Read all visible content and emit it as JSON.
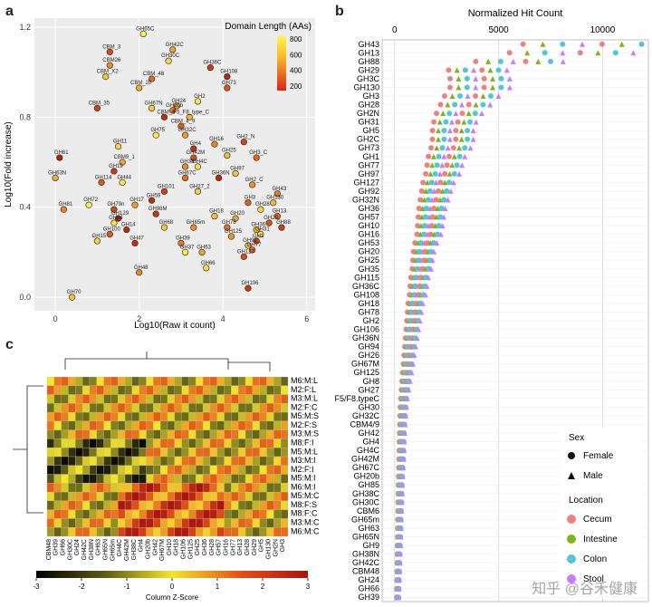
{
  "panel_labels": {
    "a": "a",
    "b": "b",
    "c": "c"
  },
  "watermark": "知乎 @谷禾健康",
  "chart_data": [
    {
      "type": "scatter",
      "panel": "a",
      "xlabel": "Log10(Raw it count)",
      "ylabel": "Log10(Fold increase)",
      "xlim": [
        -0.5,
        6.2
      ],
      "ylim": [
        -0.06,
        1.24
      ],
      "xticks": [
        0,
        2,
        4,
        6
      ],
      "yticks": [
        0.0,
        0.4,
        0.8,
        1.2
      ],
      "legend": {
        "title": "Domain Length (AAs)",
        "ticks": [
          800,
          600,
          400,
          200
        ],
        "position": "top-right"
      },
      "points": [
        {
          "label": "GH65C",
          "x": 2.1,
          "y": 1.17
        },
        {
          "label": "GH42C",
          "x": 2.8,
          "y": 1.1
        },
        {
          "label": "CBM_3",
          "x": 1.3,
          "y": 1.09
        },
        {
          "label": "GH30C",
          "x": 2.7,
          "y": 1.05
        },
        {
          "label": "CBM26",
          "x": 1.3,
          "y": 1.03
        },
        {
          "label": "GH36C",
          "x": 3.7,
          "y": 1.02
        },
        {
          "label": "CBM_X2",
          "x": 1.2,
          "y": 0.98
        },
        {
          "label": "CBM_48",
          "x": 2.3,
          "y": 0.97
        },
        {
          "label": "GH108",
          "x": 4.1,
          "y": 0.98
        },
        {
          "label": "CBM_20",
          "x": 2.0,
          "y": 0.93
        },
        {
          "label": "GH73",
          "x": 4.1,
          "y": 0.93
        },
        {
          "label": "GH2",
          "x": 3.4,
          "y": 0.87
        },
        {
          "label": "GH24",
          "x": 2.9,
          "y": 0.85
        },
        {
          "label": "CBM_35",
          "x": 1.0,
          "y": 0.84
        },
        {
          "label": "GH67N",
          "x": 2.3,
          "y": 0.84
        },
        {
          "label": "GH20b",
          "x": 2.8,
          "y": 0.83
        },
        {
          "label": "CBM_6",
          "x": 2.6,
          "y": 0.8
        },
        {
          "label": "F5_F8_type_C",
          "x": 3.2,
          "y": 0.8
        },
        {
          "label": "CBM_4_9",
          "x": 3.0,
          "y": 0.76
        },
        {
          "label": "GH75",
          "x": 2.4,
          "y": 0.72
        },
        {
          "label": "GH32C",
          "x": 3.1,
          "y": 0.72
        },
        {
          "label": "GH2_N",
          "x": 4.5,
          "y": 0.69
        },
        {
          "label": "GH11",
          "x": 1.5,
          "y": 0.67
        },
        {
          "label": "GH16",
          "x": 3.8,
          "y": 0.68
        },
        {
          "label": "GH4",
          "x": 3.3,
          "y": 0.66
        },
        {
          "label": "GH25",
          "x": 4.1,
          "y": 0.63
        },
        {
          "label": "GH3_C",
          "x": 4.8,
          "y": 0.62
        },
        {
          "label": "GH61",
          "x": 0.1,
          "y": 0.62
        },
        {
          "label": "CBM9_1",
          "x": 1.6,
          "y": 0.6
        },
        {
          "label": "GH42M",
          "x": 3.3,
          "y": 0.62
        },
        {
          "label": "GH4C",
          "x": 3.4,
          "y": 0.58
        },
        {
          "label": "GH38",
          "x": 3.1,
          "y": 0.58
        },
        {
          "label": "GH19",
          "x": 1.4,
          "y": 0.56
        },
        {
          "label": "GH97",
          "x": 4.3,
          "y": 0.55
        },
        {
          "label": "GH67C",
          "x": 3.1,
          "y": 0.53
        },
        {
          "label": "GH36N",
          "x": 3.9,
          "y": 0.53
        },
        {
          "label": "GH63N",
          "x": 0.0,
          "y": 0.53
        },
        {
          "label": "GH114",
          "x": 1.1,
          "y": 0.51
        },
        {
          "label": "GH44",
          "x": 1.6,
          "y": 0.51
        },
        {
          "label": "GH2_C",
          "x": 4.7,
          "y": 0.5
        },
        {
          "label": "GH101",
          "x": 2.6,
          "y": 0.47
        },
        {
          "label": "GH27_2",
          "x": 3.4,
          "y": 0.47
        },
        {
          "label": "GH43",
          "x": 5.3,
          "y": 0.46
        },
        {
          "label": "GH59",
          "x": 2.3,
          "y": 0.43
        },
        {
          "label": "GH130",
          "x": 5.2,
          "y": 0.42
        },
        {
          "label": "GH3",
          "x": 4.6,
          "y": 0.42
        },
        {
          "label": "GH72",
          "x": 0.8,
          "y": 0.41
        },
        {
          "label": "GH17",
          "x": 1.9,
          "y": 0.41
        },
        {
          "label": "GH79n",
          "x": 1.4,
          "y": 0.39
        },
        {
          "label": "GH28",
          "x": 4.9,
          "y": 0.39
        },
        {
          "label": "GH81",
          "x": 0.2,
          "y": 0.39
        },
        {
          "label": "GH98M",
          "x": 2.4,
          "y": 0.37
        },
        {
          "label": "GH18",
          "x": 3.8,
          "y": 0.36
        },
        {
          "label": "GH13",
          "x": 5.3,
          "y": 0.36
        },
        {
          "label": "GH129",
          "x": 1.5,
          "y": 0.35
        },
        {
          "label": "GH20",
          "x": 4.3,
          "y": 0.35
        },
        {
          "label": "GH29",
          "x": 5.1,
          "y": 0.33
        },
        {
          "label": "GH64",
          "x": 1.4,
          "y": 0.33
        },
        {
          "label": "GH65m",
          "x": 3.3,
          "y": 0.31
        },
        {
          "label": "GH88",
          "x": 5.4,
          "y": 0.31
        },
        {
          "label": "GH68",
          "x": 2.6,
          "y": 0.31
        },
        {
          "label": "GH78",
          "x": 4.1,
          "y": 0.31
        },
        {
          "label": "GH14",
          "x": 1.7,
          "y": 0.3
        },
        {
          "label": "GH36",
          "x": 4.8,
          "y": 0.3
        },
        {
          "label": "GH100",
          "x": 1.3,
          "y": 0.28
        },
        {
          "label": "GH31",
          "x": 4.9,
          "y": 0.28
        },
        {
          "label": "GH125",
          "x": 4.2,
          "y": 0.27
        },
        {
          "label": "GH1",
          "x": 4.8,
          "y": 0.25
        },
        {
          "label": "GH15",
          "x": 1.0,
          "y": 0.25
        },
        {
          "label": "GH39",
          "x": 3.0,
          "y": 0.24
        },
        {
          "label": "GH47",
          "x": 1.9,
          "y": 0.24
        },
        {
          "label": "GH92",
          "x": 4.6,
          "y": 0.23
        },
        {
          "label": "GH77",
          "x": 4.7,
          "y": 0.21
        },
        {
          "label": "GH37",
          "x": 3.1,
          "y": 0.2
        },
        {
          "label": "GH63",
          "x": 3.5,
          "y": 0.2
        },
        {
          "label": "GH127",
          "x": 4.5,
          "y": 0.18
        },
        {
          "label": "GH66",
          "x": 3.6,
          "y": 0.13
        },
        {
          "label": "GH48",
          "x": 2.0,
          "y": 0.11
        },
        {
          "label": "GH106",
          "x": 4.6,
          "y": 0.04
        },
        {
          "label": "GH70",
          "x": 0.4,
          "y": 0.0
        }
      ]
    },
    {
      "type": "dot",
      "panel": "b",
      "title": "Normalized Hit Count",
      "xlim": [
        -600,
        12200
      ],
      "xticks": [
        0,
        5000,
        10000
      ],
      "categories": [
        "GH43",
        "GH13",
        "GH88",
        "GH29",
        "GH3C",
        "GH130",
        "GH3",
        "GH28",
        "GH2N",
        "GH31",
        "GH5",
        "GH2C",
        "GH73",
        "GH1",
        "GH77",
        "GH97",
        "GH127",
        "GH92",
        "GH32N",
        "GH36",
        "GH57",
        "GH10",
        "GH16",
        "GH53",
        "GH20",
        "GH25",
        "GH35",
        "GH115",
        "GH36C",
        "GH108",
        "GH18",
        "GH78",
        "GH2",
        "GH106",
        "GH36N",
        "GH94",
        "GH26",
        "GH67M",
        "GH125",
        "GH8",
        "GH27",
        "F5/F8.typeC",
        "GH30",
        "GH32C",
        "CBM4/9",
        "GH42",
        "GH4",
        "GH4C",
        "GH42M",
        "GH67C",
        "GH20b",
        "GH85",
        "GH38C",
        "GH30C",
        "CBM6",
        "GH65m",
        "GH63",
        "GH65N",
        "GH9",
        "GH38N",
        "GH42C",
        "CBM48",
        "GH24",
        "GH66",
        "GH39"
      ],
      "values": [
        9500,
        8500,
        6000,
        4000,
        4100,
        4100,
        3700,
        3400,
        3100,
        2900,
        2800,
        2800,
        2700,
        2500,
        2400,
        2300,
        2100,
        2000,
        1900,
        1800,
        1750,
        1700,
        1650,
        1500,
        1400,
        1350,
        1300,
        1200,
        1150,
        1100,
        1000,
        950,
        900,
        850,
        800,
        750,
        700,
        650,
        600,
        550,
        500,
        450,
        420,
        400,
        380,
        360,
        350,
        340,
        330,
        310,
        290,
        280,
        270,
        260,
        250,
        240,
        230,
        220,
        210,
        200,
        190,
        180,
        170,
        160,
        150
      ],
      "legend": {
        "sex_title": "Sex",
        "sex": [
          "Female",
          "Male"
        ],
        "location_title": "Location",
        "location": [
          "Cecum",
          "Intestine",
          "Colon",
          "Stool"
        ],
        "colors": {
          "Cecum": "#f08080",
          "Intestine": "#7cb518",
          "Colon": "#4ec8d4",
          "Stool": "#c77dff"
        }
      }
    },
    {
      "type": "heatmap",
      "panel": "c",
      "xlabel": "Column Z-Score",
      "colorbar_ticks": [
        -3,
        -2,
        -1,
        0,
        1,
        2,
        3
      ],
      "rows": [
        "M6:M:L",
        "M2:F:L",
        "M3:M:L",
        "M2:F:C",
        "M5:M:S",
        "M2:F:S",
        "M3:M:S",
        "M8:F:I",
        "M5:M:L",
        "M3:M:I",
        "M2:F:I",
        "M5:M:I",
        "M6:M:I",
        "M5:M:C",
        "M8:F:S",
        "M8:F:C",
        "M3:M:C",
        "M6:M:C"
      ],
      "columns": [
        "CBM48",
        "GH39",
        "GH66",
        "GH30C",
        "GH24",
        "GH42C",
        "GH38N",
        "GH63",
        "GH65N",
        "GH65m",
        "GH4C",
        "GH42M",
        "GH38C",
        "GH4",
        "GH20b",
        "GH42",
        "GH67M",
        "GH10",
        "GH18",
        "GH106",
        "GH125",
        "GH25",
        "GH36",
        "GH28",
        "GH57",
        "GH16",
        "GH77",
        "GH13",
        "GH28",
        "GH29",
        "GH5",
        "GH130",
        "GH2N",
        "GH3"
      ]
    }
  ]
}
